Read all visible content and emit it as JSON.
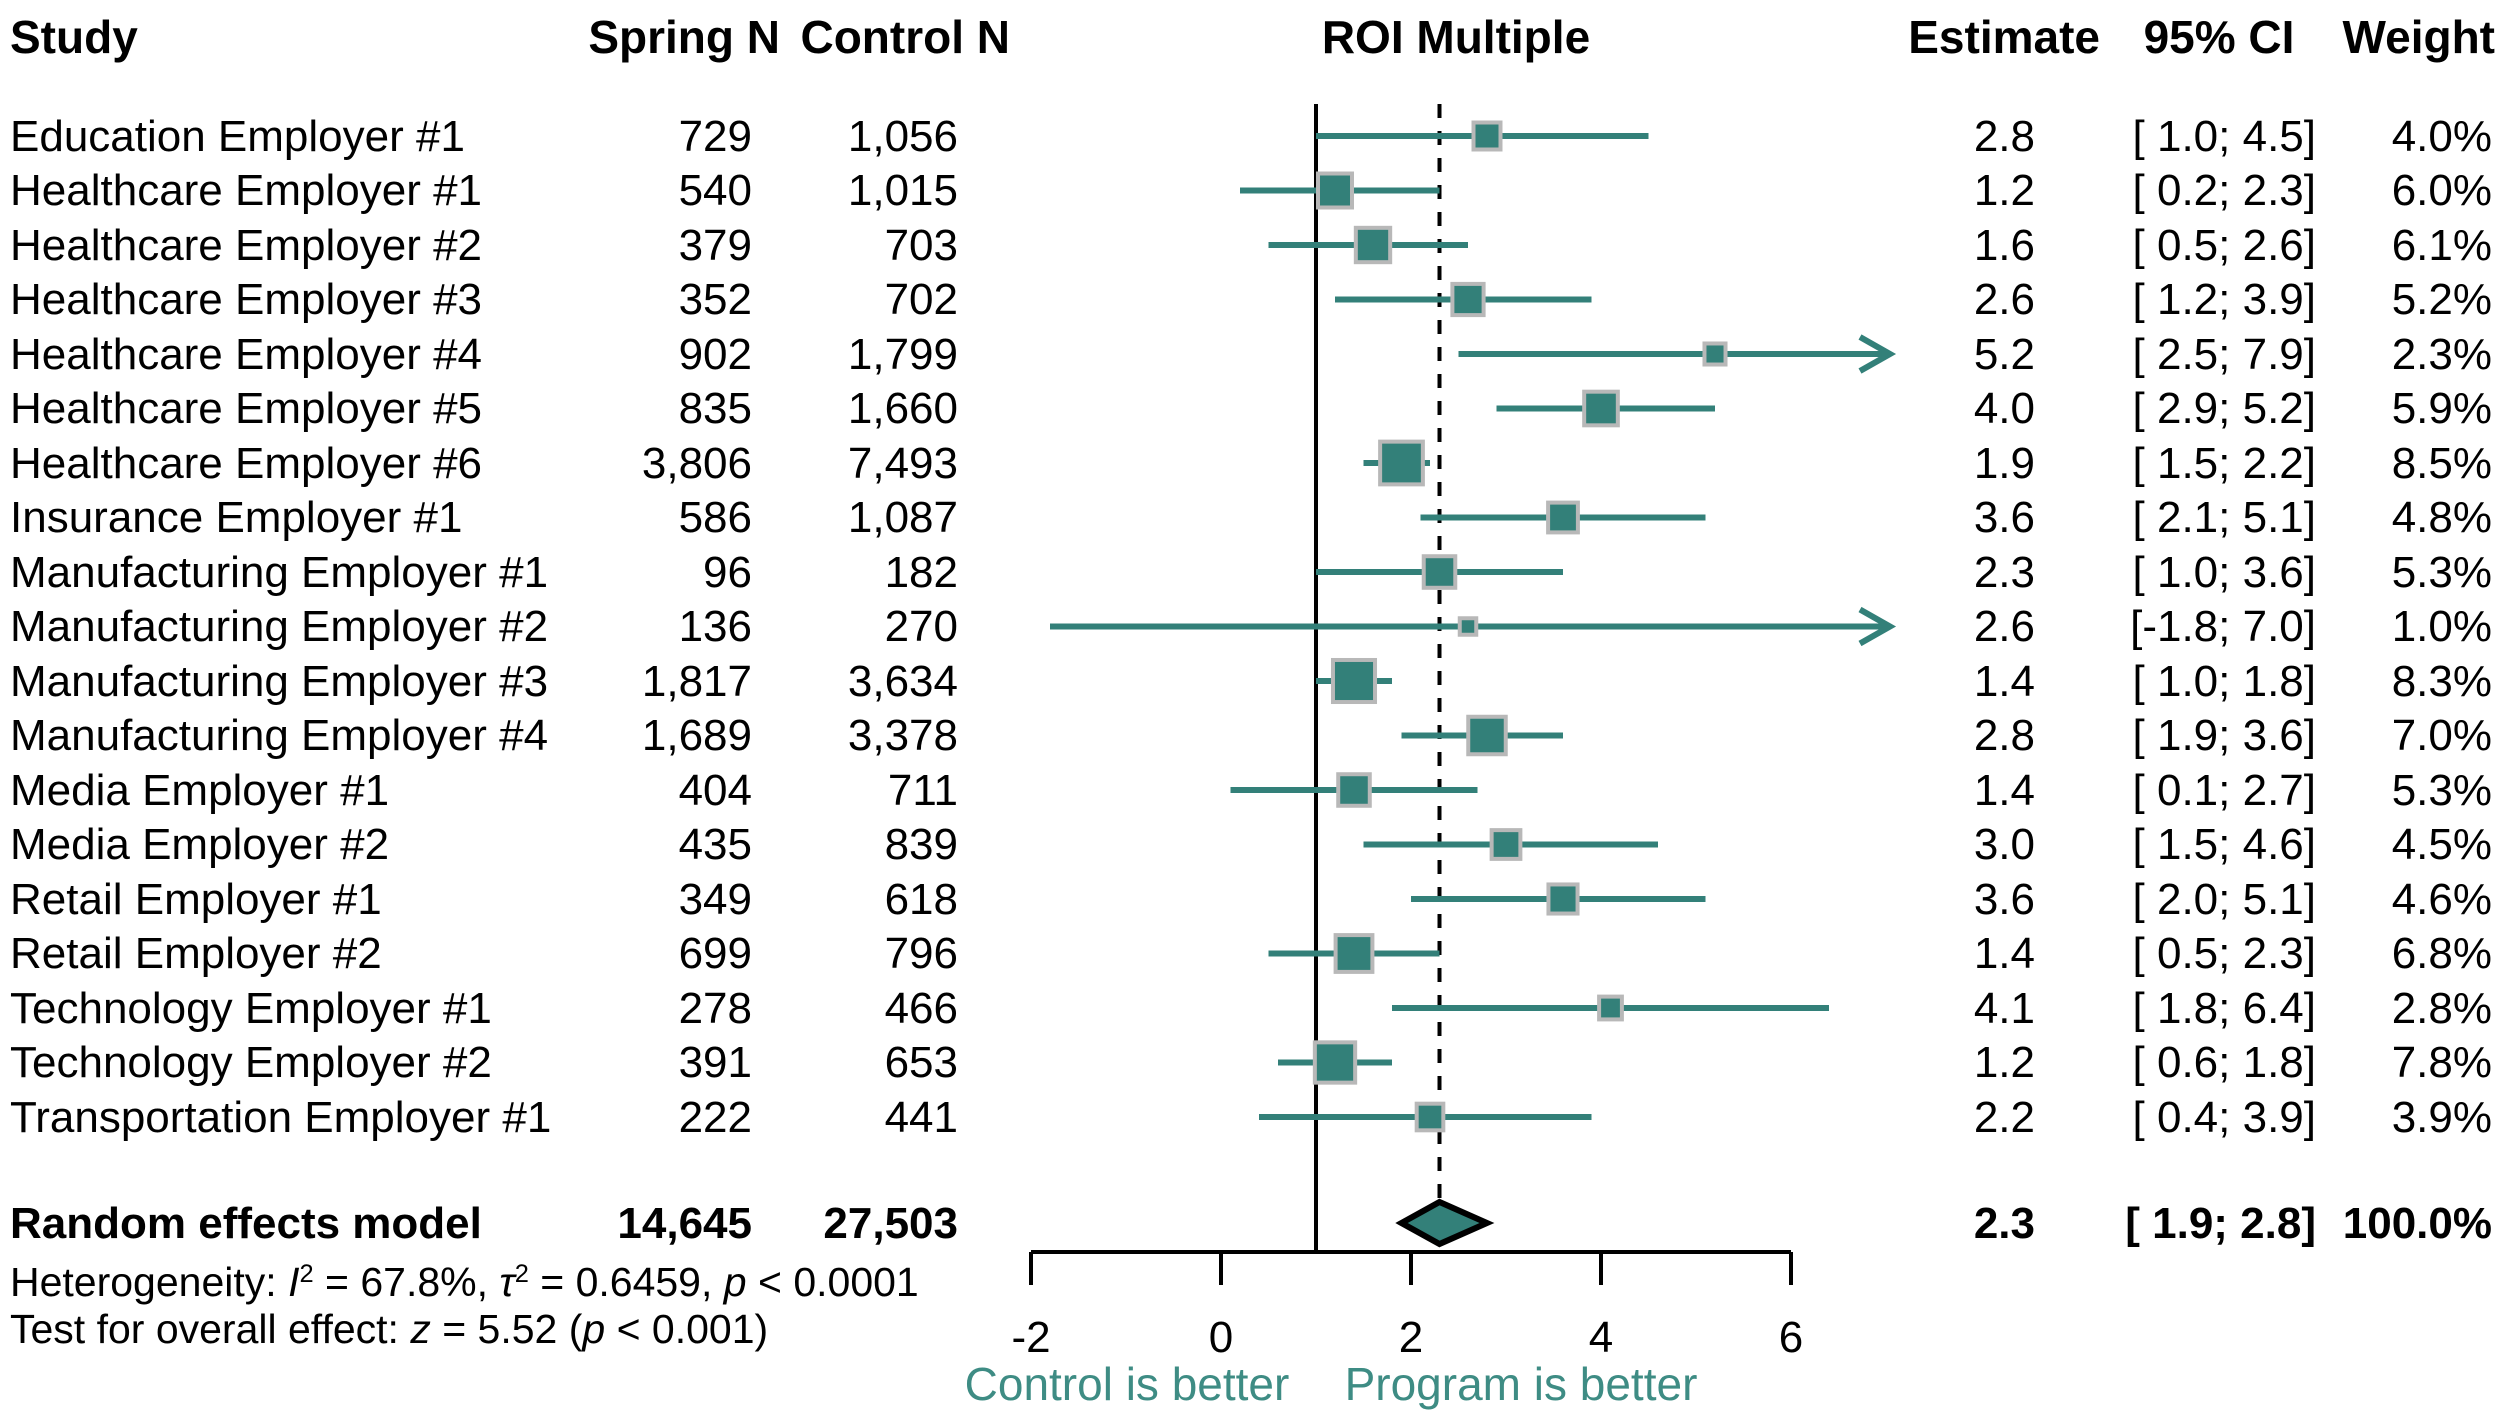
{
  "header": {
    "study": "Study",
    "spring_n": "Spring N",
    "control_n": "Control N",
    "roi": "ROI Multiple",
    "estimate": "Estimate",
    "ci": "95% CI",
    "weight": "Weight"
  },
  "stats": {
    "het": [
      "Heterogeneity: ",
      "I",
      "2",
      " = 67.8%, ",
      "τ",
      "2",
      " = 0.6459, ",
      "p",
      " < 0.0001"
    ],
    "test": [
      "Test for overall effect: ",
      "z",
      " = 5.52 (",
      "p",
      " < 0.001)"
    ]
  },
  "colors": {
    "teal": "#338079",
    "teal_text": "#3E8C84",
    "square_border": "#B8B8B8",
    "black": "#000000"
  },
  "chart_data": {
    "type": "forest",
    "title": "ROI Multiple",
    "xlim": [
      -2,
      6
    ],
    "x_ticks": [
      -2,
      0,
      2,
      4,
      6
    ],
    "x_tick_labels": [
      "-2",
      "0",
      "2",
      "4",
      "6"
    ],
    "reference_line_solid_x": 1.0,
    "reference_line_dashed_x": 2.3,
    "x_axis_annotations": {
      "left": "Control is better",
      "right": "Program is better"
    },
    "studies": [
      {
        "study": "Education Employer #1",
        "spring_n": "729",
        "control_n": "1,056",
        "estimate": 2.8,
        "ci_low": 1.0,
        "ci_high": 4.5,
        "ci_label": "[ 1.0; 4.5]",
        "weight_pct": 4.0,
        "weight_label": "4.0%"
      },
      {
        "study": "Healthcare Employer #1",
        "spring_n": "540",
        "control_n": "1,015",
        "estimate": 1.2,
        "ci_low": 0.2,
        "ci_high": 2.3,
        "ci_label": "[ 0.2; 2.3]",
        "weight_pct": 6.0,
        "weight_label": "6.0%"
      },
      {
        "study": "Healthcare Employer #2",
        "spring_n": "379",
        "control_n": "703",
        "estimate": 1.6,
        "ci_low": 0.5,
        "ci_high": 2.6,
        "ci_label": "[ 0.5; 2.6]",
        "weight_pct": 6.1,
        "weight_label": "6.1%"
      },
      {
        "study": "Healthcare Employer #3",
        "spring_n": "352",
        "control_n": "702",
        "estimate": 2.6,
        "ci_low": 1.2,
        "ci_high": 3.9,
        "ci_label": "[ 1.2; 3.9]",
        "weight_pct": 5.2,
        "weight_label": "5.2%"
      },
      {
        "study": "Healthcare Employer #4",
        "spring_n": "902",
        "control_n": "1,799",
        "estimate": 5.2,
        "ci_low": 2.5,
        "ci_high": 7.9,
        "ci_label": "[ 2.5; 7.9]",
        "weight_pct": 2.3,
        "weight_label": "2.3%"
      },
      {
        "study": "Healthcare Employer #5",
        "spring_n": "835",
        "control_n": "1,660",
        "estimate": 4.0,
        "ci_low": 2.9,
        "ci_high": 5.2,
        "ci_label": "[ 2.9; 5.2]",
        "weight_pct": 5.9,
        "weight_label": "5.9%"
      },
      {
        "study": "Healthcare Employer #6",
        "spring_n": "3,806",
        "control_n": "7,493",
        "estimate": 1.9,
        "ci_low": 1.5,
        "ci_high": 2.2,
        "ci_label": "[ 1.5; 2.2]",
        "weight_pct": 8.5,
        "weight_label": "8.5%"
      },
      {
        "study": "Insurance Employer #1",
        "spring_n": "586",
        "control_n": "1,087",
        "estimate": 3.6,
        "ci_low": 2.1,
        "ci_high": 5.1,
        "ci_label": "[ 2.1; 5.1]",
        "weight_pct": 4.8,
        "weight_label": "4.8%"
      },
      {
        "study": "Manufacturing Employer #1",
        "spring_n": "96",
        "control_n": "182",
        "estimate": 2.3,
        "ci_low": 1.0,
        "ci_high": 3.6,
        "ci_label": "[ 1.0; 3.6]",
        "weight_pct": 5.3,
        "weight_label": "5.3%"
      },
      {
        "study": "Manufacturing Employer #2",
        "spring_n": "136",
        "control_n": "270",
        "estimate": 2.6,
        "ci_low": -1.8,
        "ci_high": 7.0,
        "ci_label": "[-1.8; 7.0]",
        "weight_pct": 1.0,
        "weight_label": "1.0%"
      },
      {
        "study": "Manufacturing Employer #3",
        "spring_n": "1,817",
        "control_n": "3,634",
        "estimate": 1.4,
        "ci_low": 1.0,
        "ci_high": 1.8,
        "ci_label": "[ 1.0; 1.8]",
        "weight_pct": 8.3,
        "weight_label": "8.3%"
      },
      {
        "study": "Manufacturing Employer #4",
        "spring_n": "1,689",
        "control_n": "3,378",
        "estimate": 2.8,
        "ci_low": 1.9,
        "ci_high": 3.6,
        "ci_label": "[ 1.9; 3.6]",
        "weight_pct": 7.0,
        "weight_label": "7.0%"
      },
      {
        "study": "Media Employer #1",
        "spring_n": "404",
        "control_n": "711",
        "estimate": 1.4,
        "ci_low": 0.1,
        "ci_high": 2.7,
        "ci_label": "[ 0.1; 2.7]",
        "weight_pct": 5.3,
        "weight_label": "5.3%"
      },
      {
        "study": "Media Employer #2",
        "spring_n": "435",
        "control_n": "839",
        "estimate": 3.0,
        "ci_low": 1.5,
        "ci_high": 4.6,
        "ci_label": "[ 1.5; 4.6]",
        "weight_pct": 4.5,
        "weight_label": "4.5%"
      },
      {
        "study": "Retail Employer #1",
        "spring_n": "349",
        "control_n": "618",
        "estimate": 3.6,
        "ci_low": 2.0,
        "ci_high": 5.1,
        "ci_label": "[ 2.0; 5.1]",
        "weight_pct": 4.6,
        "weight_label": "4.6%"
      },
      {
        "study": "Retail Employer #2",
        "spring_n": "699",
        "control_n": "796",
        "estimate": 1.4,
        "ci_low": 0.5,
        "ci_high": 2.3,
        "ci_label": "[ 0.5; 2.3]",
        "weight_pct": 6.8,
        "weight_label": "6.8%"
      },
      {
        "study": "Technology Employer #1",
        "spring_n": "278",
        "control_n": "466",
        "estimate": 4.1,
        "ci_low": 1.8,
        "ci_high": 6.4,
        "ci_label": "[ 1.8; 6.4]",
        "weight_pct": 2.8,
        "weight_label": "2.8%"
      },
      {
        "study": "Technology Employer #2",
        "spring_n": "391",
        "control_n": "653",
        "estimate": 1.2,
        "ci_low": 0.6,
        "ci_high": 1.8,
        "ci_label": "[ 0.6; 1.8]",
        "weight_pct": 7.8,
        "weight_label": "7.8%"
      },
      {
        "study": "Transportation Employer #1",
        "spring_n": "222",
        "control_n": "441",
        "estimate": 2.2,
        "ci_low": 0.4,
        "ci_high": 3.9,
        "ci_label": "[ 0.4; 3.9]",
        "weight_pct": 3.9,
        "weight_label": "3.9%"
      }
    ],
    "summary": {
      "study": "Random effects model",
      "spring_n": "14,645",
      "control_n": "27,503",
      "estimate": 2.3,
      "ci_low": 1.9,
      "ci_high": 2.8,
      "ci_label": "[ 1.9; 2.8]",
      "weight_label": "100.0%"
    },
    "heterogeneity": "Heterogeneity: I² = 67.8%, τ² = 0.6459, p < 0.0001",
    "overall_effect_test": "Test for overall effect: z = 5.52 (p < 0.001)"
  }
}
